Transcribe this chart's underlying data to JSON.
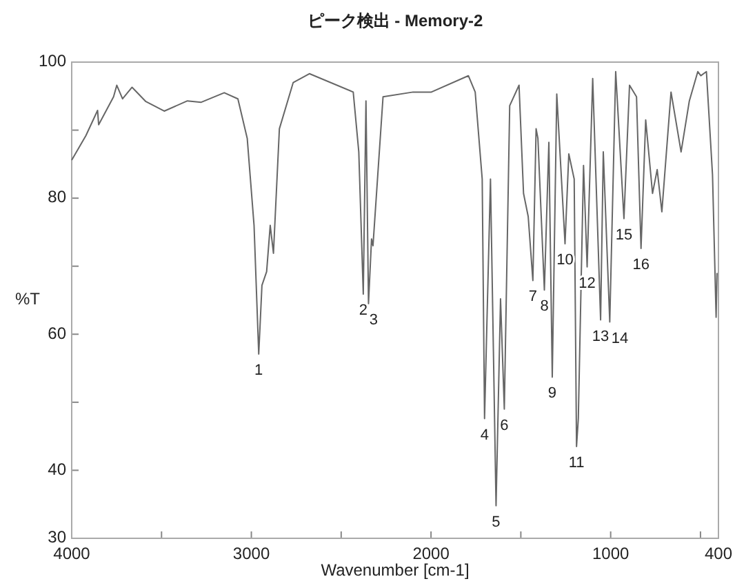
{
  "chart_data": {
    "type": "line",
    "title": "ピーク検出 - Memory-2",
    "xlabel": "Wavenumber [cm-1]",
    "ylabel": "%T",
    "xlim": [
      4000,
      400
    ],
    "ylim": [
      30,
      100
    ],
    "xticks": [
      4000,
      {
        "value": 3500,
        "label": null
      },
      3000,
      {
        "value": 2500,
        "label": null
      },
      2000,
      {
        "value": 1500,
        "label": null
      },
      1000,
      {
        "value": 500,
        "label": null
      },
      400
    ],
    "yticks": [
      30,
      40,
      {
        "value": 50,
        "label": null
      },
      60,
      {
        "value": 70,
        "label": null
      },
      80,
      {
        "value": 90,
        "label": null
      },
      100
    ],
    "grid": false,
    "line_style": "solid",
    "series": [
      {
        "color": "#666666",
        "x": [
          4000,
          3921,
          3856,
          3850,
          3767,
          3749,
          3717,
          3664,
          3587,
          3485,
          3356,
          3279,
          3151,
          3075,
          3023,
          2985,
          2959,
          2941,
          2915,
          2895,
          2877,
          2844,
          2767,
          2677,
          2433,
          2402,
          2377,
          2362,
          2348,
          2331,
          2323,
          2267,
          2100,
          1998,
          1792,
          1754,
          1715,
          1702,
          1669,
          1638,
          1613,
          1592,
          1562,
          1510,
          1485,
          1459,
          1433,
          1415,
          1405,
          1369,
          1344,
          1325,
          1300,
          1254,
          1233,
          1203,
          1190,
          1180,
          1151,
          1131,
          1100,
          1056,
          1041,
          1005,
          972,
          926,
          895,
          856,
          831,
          805,
          767,
          741,
          715,
          664,
          608,
          562,
          515,
          498,
          467,
          433,
          413,
          408
        ],
        "values": [
          85.6,
          89.2,
          92.9,
          90.8,
          94.9,
          96.6,
          94.6,
          96.3,
          94.2,
          92.8,
          94.3,
          94.1,
          95.5,
          94.6,
          88.8,
          76,
          57.1,
          67.2,
          69.2,
          76,
          71.9,
          90.2,
          97,
          98.3,
          95.6,
          86.8,
          65.9,
          94.3,
          64.5,
          74,
          73,
          94.9,
          95.6,
          95.6,
          98,
          95.6,
          82.8,
          47.6,
          82.8,
          34.8,
          65.2,
          49,
          93.6,
          96.6,
          80.7,
          77.3,
          67.9,
          90.2,
          88.8,
          66.5,
          88.2,
          53.7,
          95.3,
          73.3,
          86.5,
          82.8,
          43.5,
          47.6,
          84.8,
          69.9,
          97.6,
          62.1,
          86.8,
          61.8,
          98.6,
          77,
          96.6,
          94.9,
          72.6,
          91.5,
          80.7,
          84.2,
          78,
          95.6,
          86.8,
          94.3,
          98.6,
          98,
          98.6,
          83.4,
          62.5,
          69
        ]
      }
    ],
    "annotations": [
      {
        "text": "1",
        "x": 2959,
        "y": 57.1
      },
      {
        "text": "2",
        "x": 2377,
        "y": 65.9
      },
      {
        "text": "3",
        "x": 2348,
        "y": 64.5
      },
      {
        "text": "4",
        "x": 1702,
        "y": 47.6
      },
      {
        "text": "5",
        "x": 1638,
        "y": 34.8
      },
      {
        "text": "6",
        "x": 1592,
        "y": 49
      },
      {
        "text": "7",
        "x": 1433,
        "y": 67.9
      },
      {
        "text": "8",
        "x": 1369,
        "y": 66.5
      },
      {
        "text": "9",
        "x": 1325,
        "y": 53.7
      },
      {
        "text": "10",
        "x": 1254,
        "y": 73.3
      },
      {
        "text": "11",
        "x": 1190,
        "y": 43.5
      },
      {
        "text": "12",
        "x": 1131,
        "y": 69.9
      },
      {
        "text": "13",
        "x": 1056,
        "y": 62.1
      },
      {
        "text": "14",
        "x": 1005,
        "y": 61.8
      },
      {
        "text": "15",
        "x": 926,
        "y": 77
      },
      {
        "text": "16",
        "x": 831,
        "y": 72.6
      }
    ]
  }
}
